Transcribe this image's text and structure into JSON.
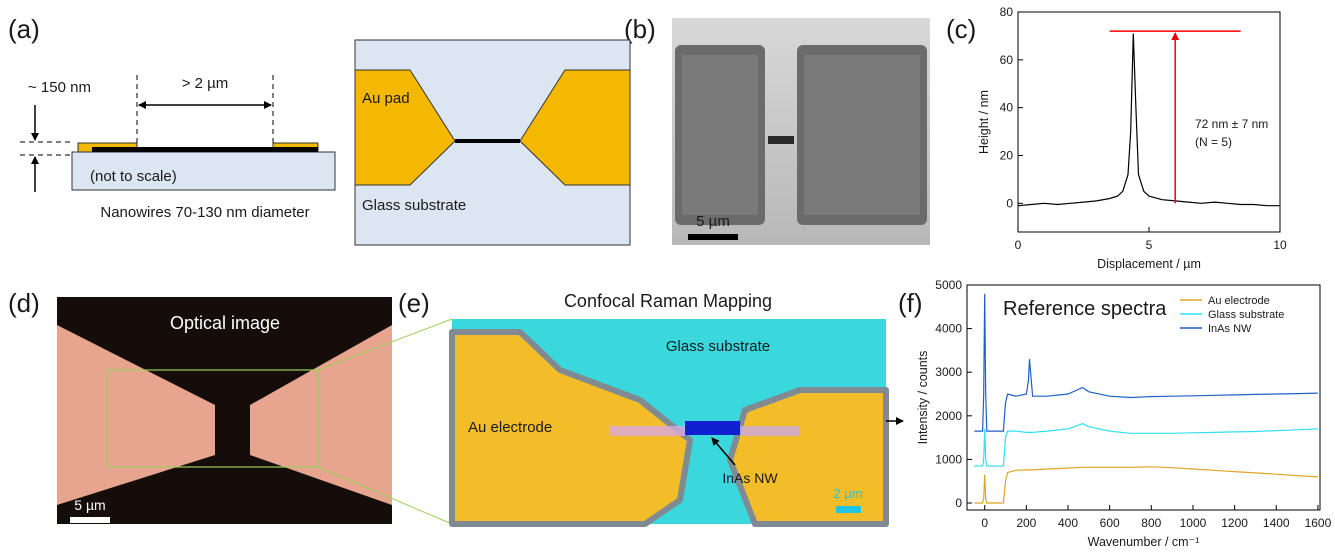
{
  "panel_labels": [
    "(a)",
    "(b)",
    "(c)",
    "(d)",
    "(e)",
    "(f)"
  ],
  "panel_a": {
    "thickness": "~ 150 nm",
    "gap": "> 2 µm",
    "note": "(not to scale)",
    "caption": "Nanowires 70-130 nm diameter",
    "pad": "Au pad",
    "substrate": "Glass substrate"
  },
  "panel_b": {
    "scale_bar": "5 µm"
  },
  "panel_d": {
    "title": "Optical image",
    "scale_bar": "5 µm"
  },
  "panel_e": {
    "title": "Confocal Raman Mapping",
    "substrate": "Glass substrate",
    "electrode": "Au electrode",
    "nanowire": "InAs NW",
    "scale_bar": "2 µm"
  },
  "chart_data": [
    {
      "type": "line",
      "x_label": "Displacement / µm",
      "y_label": "Height / nm",
      "x": [
        0,
        0.5,
        1,
        1.5,
        2,
        2.5,
        3,
        3.5,
        3.8,
        4.0,
        4.2,
        4.3,
        4.4,
        4.5,
        4.6,
        4.8,
        5.0,
        5.5,
        6,
        6.5,
        7,
        7.5,
        8,
        8.5,
        9,
        9.5,
        10
      ],
      "series": [
        {
          "color": "#000000",
          "values": [
            -1,
            -0.5,
            0,
            -0.5,
            0,
            0.5,
            1,
            2,
            3,
            5,
            12,
            30,
            71,
            40,
            12,
            5,
            3,
            1.5,
            1,
            0.5,
            0,
            0.5,
            0,
            -0.5,
            -0.5,
            -1,
            -1
          ]
        }
      ],
      "xlim": [
        0,
        10
      ],
      "xticks": [
        0,
        5,
        10
      ],
      "ylim": [
        -12,
        80
      ],
      "yticks": [
        0,
        20,
        40,
        60,
        80
      ],
      "hline": {
        "y": 72,
        "xmin": 3.5,
        "xmax": 8.5,
        "color": "#ff0000"
      },
      "arrow": {
        "x": 6,
        "from": 0,
        "to": 72
      },
      "annotations": [
        "72 nm ± 7 nm",
        "(N = 5)"
      ]
    },
    {
      "type": "line",
      "title": "Reference spectra",
      "x_label": "Wavenumber / cm⁻¹",
      "y_label": "Intensity / counts",
      "x": [
        -50,
        -10,
        -5,
        0,
        5,
        10,
        50,
        90,
        100,
        110,
        150,
        200,
        210,
        215,
        230,
        300,
        400,
        470,
        500,
        600,
        700,
        800,
        900,
        1000,
        1100,
        1200,
        1300,
        1400,
        1500,
        1600
      ],
      "series": [
        {
          "name": "Au electrode",
          "color": "#e0a526",
          "values": [
            0,
            0,
            100,
            650,
            100,
            0,
            0,
            0,
            500,
            700,
            750,
            760,
            760,
            760,
            760,
            780,
            800,
            820,
            820,
            820,
            820,
            830,
            810,
            780,
            750,
            720,
            690,
            660,
            630,
            600
          ]
        },
        {
          "name": "Glass substrate",
          "color": "#33e0f0",
          "values": [
            850,
            850,
            1000,
            1700,
            1000,
            850,
            850,
            850,
            1500,
            1650,
            1650,
            1620,
            1620,
            1620,
            1620,
            1650,
            1700,
            1820,
            1750,
            1650,
            1600,
            1600,
            1600,
            1610,
            1620,
            1630,
            1640,
            1660,
            1680,
            1700
          ]
        },
        {
          "name": "InAs NW",
          "color": "#1f5fc8",
          "values": [
            1650,
            1650,
            2500,
            4800,
            2500,
            1650,
            1650,
            1650,
            2300,
            2500,
            2450,
            2500,
            2800,
            3300,
            2450,
            2450,
            2500,
            2650,
            2550,
            2450,
            2420,
            2440,
            2450,
            2460,
            2470,
            2480,
            2490,
            2500,
            2510,
            2520
          ]
        }
      ],
      "xlim": [
        -85,
        1610
      ],
      "xticks": [
        0,
        200,
        400,
        600,
        800,
        1000,
        1200,
        1400,
        1600
      ],
      "ylim": [
        -160,
        5000
      ],
      "yticks": [
        0,
        1000,
        2000,
        3000,
        4000,
        5000
      ],
      "legend": "upper right"
    }
  ]
}
